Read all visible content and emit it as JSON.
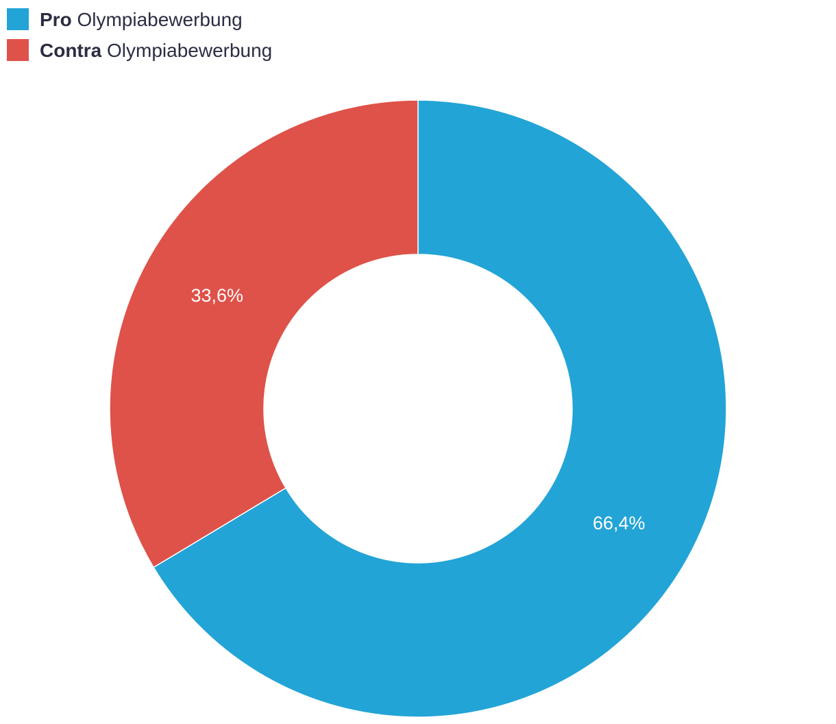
{
  "chart_data": {
    "type": "donut",
    "categories": [
      {
        "strong": "Pro",
        "text": "Olympiabewerbung"
      },
      {
        "strong": "Contra",
        "text": "Olympiabewerbung"
      }
    ],
    "values": [
      66.4,
      33.6
    ],
    "value_labels": [
      "66,4%",
      "33,6%"
    ],
    "colors": [
      "#23a4d6",
      "#de5249"
    ]
  }
}
